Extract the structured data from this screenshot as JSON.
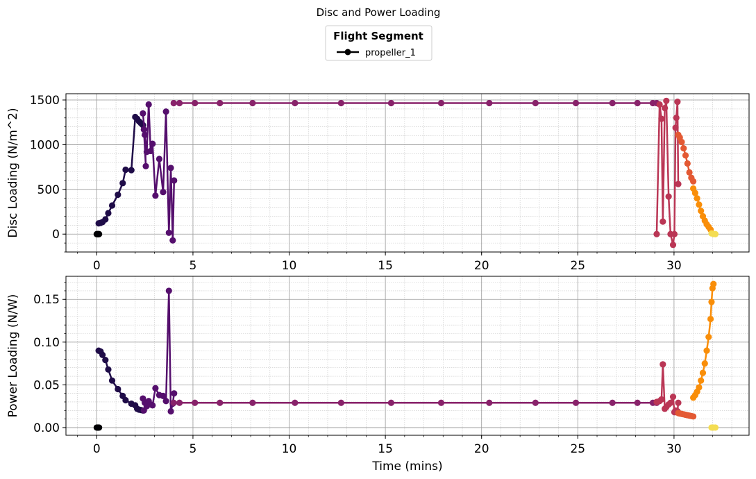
{
  "figure": {
    "title": "Disc and Power Loading",
    "legend": {
      "title": "Flight Segment",
      "entries": [
        "propeller_1"
      ],
      "placement": "top-center"
    },
    "colors": {
      "background": "#ffffff",
      "grid_major": "#9a9a9a",
      "grid_minor": "#c8c8c8"
    }
  },
  "chart_data": [
    {
      "type": "line",
      "ylabel": "Disc Loading (N/m^2)",
      "xlabel": "",
      "xlim": [
        -1.6,
        33.9
      ],
      "ylim": [
        -200,
        1570
      ],
      "grid": true,
      "x_ticks": [
        0,
        5,
        10,
        15,
        20,
        25,
        30
      ],
      "y_ticks": [
        0,
        500,
        1000,
        1500
      ],
      "tick_labels_x": [
        "0",
        "5",
        "10",
        "15",
        "20",
        "25",
        "30"
      ],
      "tick_labels_y": [
        "0",
        "500",
        "1000",
        "1500"
      ],
      "series": [
        {
          "name": "propeller_1",
          "color": "#000004",
          "x": [
            0,
            0.03,
            0.06,
            0.09,
            0.12
          ],
          "y": [
            0,
            0,
            0,
            0,
            0
          ]
        },
        {
          "name": "propeller_1",
          "color": "#1f0c48",
          "x": [
            0.1,
            0.2,
            0.3,
            0.45,
            0.6,
            0.8,
            1.1,
            1.35,
            1.5,
            1.8,
            2.0,
            2.1,
            2.2,
            2.3,
            2.4
          ],
          "y": [
            120,
            125,
            135,
            165,
            235,
            320,
            440,
            570,
            720,
            715,
            1310,
            1290,
            1260,
            1240,
            1220
          ]
        },
        {
          "name": "propeller_1",
          "color": "#550f6d",
          "x": [
            2.4,
            2.5,
            2.55,
            2.45,
            2.6,
            2.7,
            2.8,
            2.9,
            3.05,
            3.25,
            3.45,
            3.6,
            3.75,
            3.85,
            3.95,
            4.02
          ],
          "y": [
            1350,
            1110,
            760,
            1170,
            920,
            1450,
            930,
            1010,
            430,
            840,
            470,
            1370,
            15,
            740,
            -70,
            600
          ]
        },
        {
          "name": "propeller_1",
          "color": "#88226a",
          "x": [
            4.0,
            4.3,
            5.1,
            6.4,
            8.1,
            10.3,
            12.7,
            15.3,
            17.9,
            20.4,
            22.8,
            24.9,
            26.8,
            28.1,
            28.9,
            29.1
          ],
          "y": [
            1465,
            1465,
            1465,
            1465,
            1465,
            1465,
            1465,
            1465,
            1465,
            1465,
            1465,
            1465,
            1465,
            1465,
            1465,
            1465
          ]
        },
        {
          "name": "propeller_1",
          "color": "#ba3655",
          "x": [
            29.1,
            29.25,
            29.35,
            29.42,
            29.52,
            29.6,
            29.72,
            29.82,
            29.95,
            30.02,
            30.08,
            30.12,
            30.18,
            30.22
          ],
          "y": [
            0,
            1450,
            1290,
            140,
            1410,
            1490,
            420,
            0,
            -120,
            0,
            1190,
            1300,
            1480,
            560
          ]
        },
        {
          "name": "propeller_1",
          "color": "#e35933",
          "x": [
            30.22,
            30.3,
            30.4,
            30.5,
            30.6,
            30.7,
            30.8,
            30.9,
            31.0
          ],
          "y": [
            1110,
            1080,
            1030,
            960,
            880,
            790,
            690,
            630,
            590
          ]
        },
        {
          "name": "propeller_1",
          "color": "#f98e09",
          "x": [
            31.0,
            31.1,
            31.2,
            31.3,
            31.4,
            31.5,
            31.6,
            31.7,
            31.8,
            31.9
          ],
          "y": [
            510,
            460,
            400,
            330,
            260,
            200,
            150,
            110,
            80,
            50
          ]
        },
        {
          "name": "propeller_1",
          "color": "#f4dd53",
          "x": [
            31.95,
            32.05,
            32.15
          ],
          "y": [
            8,
            2,
            0
          ]
        }
      ]
    },
    {
      "type": "line",
      "ylabel": "Power Loading (N/W)",
      "xlabel": "Time (mins)",
      "xlim": [
        -1.6,
        33.9
      ],
      "ylim": [
        -0.009,
        0.177
      ],
      "grid": true,
      "x_ticks": [
        0,
        5,
        10,
        15,
        20,
        25,
        30
      ],
      "y_ticks": [
        0.0,
        0.05,
        0.1,
        0.15
      ],
      "tick_labels_x": [
        "0",
        "5",
        "10",
        "15",
        "20",
        "25",
        "30"
      ],
      "tick_labels_y": [
        "0.00",
        "0.05",
        "0.10",
        "0.15"
      ],
      "series": [
        {
          "name": "propeller_1",
          "color": "#000004",
          "x": [
            0,
            0.03,
            0.06,
            0.09,
            0.12
          ],
          "y": [
            0,
            0,
            0,
            0,
            0
          ]
        },
        {
          "name": "propeller_1",
          "color": "#1f0c48",
          "x": [
            0.1,
            0.2,
            0.3,
            0.45,
            0.6,
            0.8,
            1.1,
            1.35,
            1.5,
            1.8,
            2.0,
            2.1,
            2.2,
            2.3,
            2.4
          ],
          "y": [
            0.09,
            0.089,
            0.085,
            0.079,
            0.068,
            0.055,
            0.045,
            0.037,
            0.032,
            0.028,
            0.026,
            0.022,
            0.021,
            0.0205,
            0.02
          ]
        },
        {
          "name": "propeller_1",
          "color": "#550f6d",
          "x": [
            2.4,
            2.5,
            2.55,
            2.45,
            2.6,
            2.7,
            2.8,
            2.9,
            3.05,
            3.25,
            3.45,
            3.6,
            3.75,
            3.85,
            3.95,
            4.02
          ],
          "y": [
            0.034,
            0.029,
            0.029,
            0.02,
            0.025,
            0.031,
            0.027,
            0.026,
            0.046,
            0.038,
            0.037,
            0.031,
            0.16,
            0.019,
            0.028,
            0.04
          ]
        },
        {
          "name": "propeller_1",
          "color": "#88226a",
          "x": [
            4.0,
            4.3,
            5.1,
            6.4,
            8.1,
            10.3,
            12.7,
            15.3,
            17.9,
            20.4,
            22.8,
            24.9,
            26.8,
            28.1,
            28.9,
            29.1
          ],
          "y": [
            0.029,
            0.029,
            0.029,
            0.029,
            0.029,
            0.029,
            0.029,
            0.029,
            0.029,
            0.029,
            0.029,
            0.029,
            0.029,
            0.029,
            0.029,
            0.029
          ]
        },
        {
          "name": "propeller_1",
          "color": "#ba3655",
          "x": [
            29.1,
            29.25,
            29.35,
            29.42,
            29.52,
            29.6,
            29.72,
            29.82,
            29.95,
            30.02,
            30.08,
            30.12,
            30.18,
            30.22
          ],
          "y": [
            0.03,
            0.031,
            0.033,
            0.074,
            0.022,
            0.024,
            0.027,
            0.029,
            0.036,
            0.018,
            0.02,
            0.018,
            0.019,
            0.029
          ]
        },
        {
          "name": "propeller_1",
          "color": "#e35933",
          "x": [
            30.22,
            30.3,
            30.4,
            30.5,
            30.6,
            30.7,
            30.8,
            30.9,
            31.0
          ],
          "y": [
            0.017,
            0.0165,
            0.016,
            0.0155,
            0.015,
            0.0145,
            0.014,
            0.0135,
            0.013
          ]
        },
        {
          "name": "propeller_1",
          "color": "#f98e09",
          "x": [
            31.0,
            31.1,
            31.2,
            31.3,
            31.4,
            31.5,
            31.6,
            31.7,
            31.8,
            31.9,
            31.95,
            32.0,
            32.05
          ],
          "y": [
            0.035,
            0.038,
            0.042,
            0.047,
            0.055,
            0.064,
            0.075,
            0.09,
            0.106,
            0.127,
            0.147,
            0.163,
            0.168
          ]
        },
        {
          "name": "propeller_1",
          "color": "#f4dd53",
          "x": [
            31.95,
            32.05,
            32.15
          ],
          "y": [
            0,
            0,
            0
          ]
        }
      ]
    }
  ]
}
